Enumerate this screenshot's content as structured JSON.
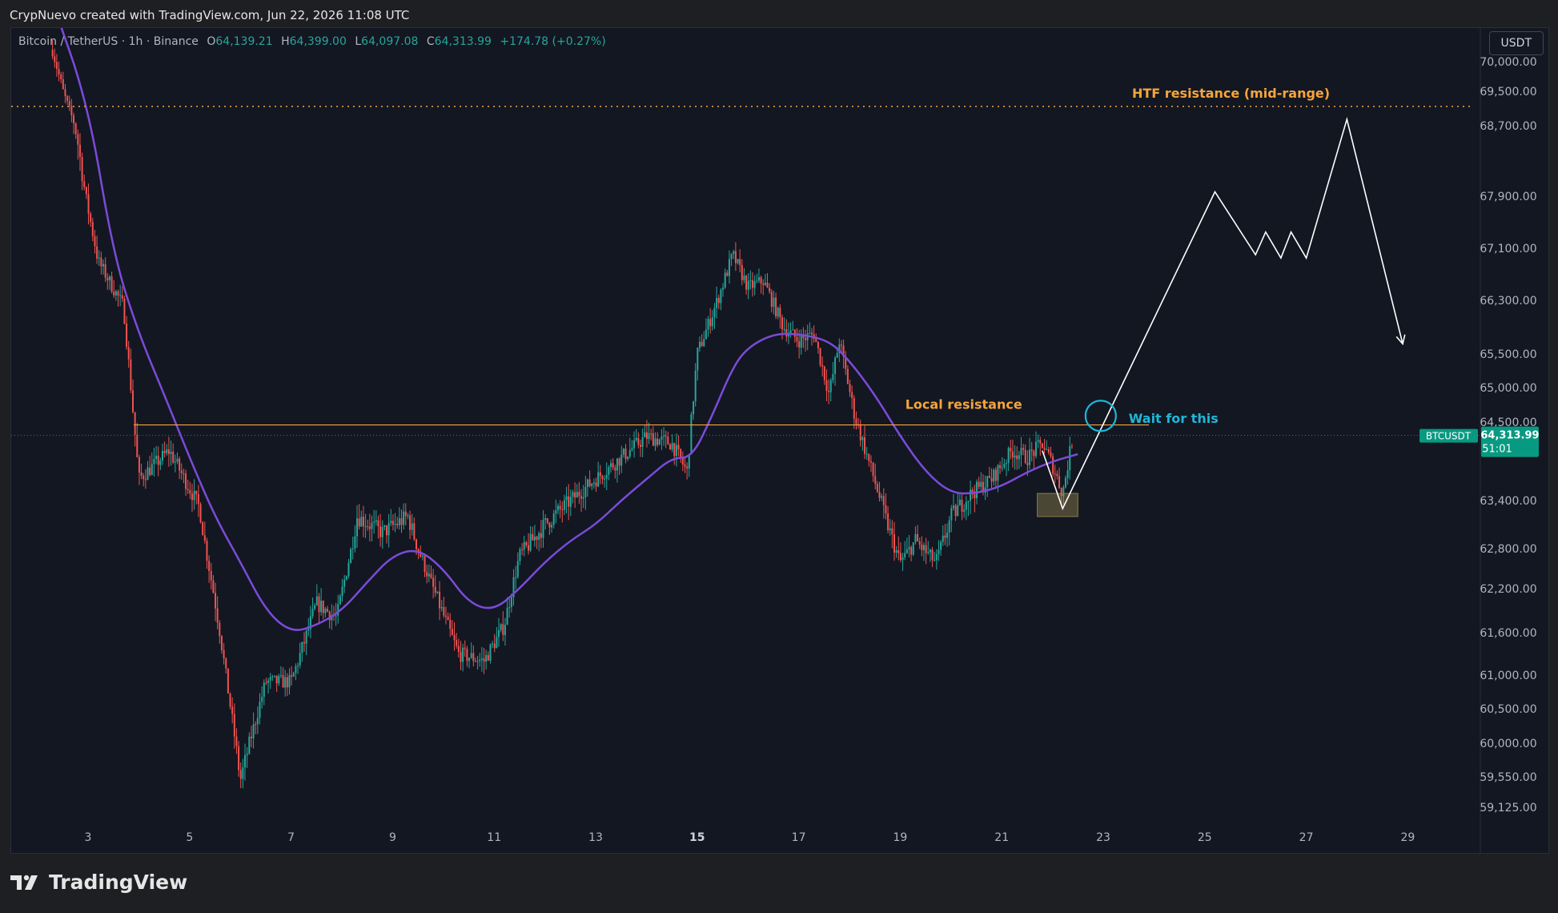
{
  "header": {
    "attribution": "CrypNuevo created with TradingView.com, Jun 22, 2026 11:08 UTC"
  },
  "symbol_bar": {
    "name": "Bitcoin / TetherUS · 1h · Binance",
    "o_label": "O",
    "o_value": "64,139.21",
    "h_label": "H",
    "h_value": "64,399.00",
    "l_label": "L",
    "l_value": "64,097.08",
    "c_label": "C",
    "c_value": "64,313.99",
    "change": "+174.78 (+0.27%)"
  },
  "currency_button": "USDT",
  "brand": "TradingView",
  "colors": {
    "up": "#26a69a",
    "down": "#ef5350",
    "ma": "#7b4bd8",
    "orange": "#f7a53b",
    "cyan": "#1eb6d8",
    "projection": "#ffffff",
    "price_tag": "#089981"
  },
  "chart_data": {
    "type": "candlestick",
    "timeframe": "1h",
    "symbol": "BTCUSDT",
    "x_ticks": [
      "3",
      "5",
      "7",
      "9",
      "11",
      "13",
      "15",
      "17",
      "19",
      "21",
      "23",
      "25",
      "27",
      "29"
    ],
    "x_ticks_bold": [
      "15"
    ],
    "x_tick_days": [
      3,
      5,
      7,
      9,
      11,
      13,
      15,
      17,
      19,
      21,
      23,
      25,
      27,
      29
    ],
    "y_ticks": [
      70000,
      69500,
      68700,
      67900,
      67100,
      66300,
      65500,
      65000,
      64500,
      63400,
      62800,
      62200,
      61600,
      61000,
      60500,
      60000,
      59550,
      59125
    ],
    "y_tick_labels": [
      "70,000.00",
      "69,500.00",
      "68,700.00",
      "67,900.00",
      "67,100.00",
      "66,300.00",
      "65,500.00",
      "65,000.00",
      "64,500.00",
      "63,400.00",
      "62,800.00",
      "62,200.00",
      "61,600.00",
      "61,000.00",
      "60,500.00",
      "60,000.00",
      "59,550.00",
      "59,125.00"
    ],
    "price_anchors": [
      {
        "day": 2.3,
        "price": 70200
      },
      {
        "day": 2.8,
        "price": 68500
      },
      {
        "day": 3.2,
        "price": 66900
      },
      {
        "day": 3.7,
        "price": 66200
      },
      {
        "day": 4.0,
        "price": 63700
      },
      {
        "day": 4.6,
        "price": 64100
      },
      {
        "day": 5.2,
        "price": 63300
      },
      {
        "day": 5.6,
        "price": 61600
      },
      {
        "day": 6.0,
        "price": 59500
      },
      {
        "day": 6.5,
        "price": 60900
      },
      {
        "day": 7.0,
        "price": 60900
      },
      {
        "day": 7.5,
        "price": 62000
      },
      {
        "day": 7.9,
        "price": 61800
      },
      {
        "day": 8.3,
        "price": 63200
      },
      {
        "day": 8.8,
        "price": 63000
      },
      {
        "day": 9.3,
        "price": 63200
      },
      {
        "day": 9.8,
        "price": 62200
      },
      {
        "day": 10.3,
        "price": 61300
      },
      {
        "day": 10.8,
        "price": 61200
      },
      {
        "day": 11.2,
        "price": 61700
      },
      {
        "day": 11.5,
        "price": 62700
      },
      {
        "day": 12.0,
        "price": 63100
      },
      {
        "day": 12.5,
        "price": 63400
      },
      {
        "day": 13.0,
        "price": 63700
      },
      {
        "day": 13.5,
        "price": 64000
      },
      {
        "day": 14.0,
        "price": 64300
      },
      {
        "day": 14.5,
        "price": 64200
      },
      {
        "day": 14.8,
        "price": 63800
      },
      {
        "day": 15.0,
        "price": 65500
      },
      {
        "day": 15.4,
        "price": 66300
      },
      {
        "day": 15.7,
        "price": 67000
      },
      {
        "day": 16.0,
        "price": 66500
      },
      {
        "day": 16.3,
        "price": 66600
      },
      {
        "day": 16.7,
        "price": 65900
      },
      {
        "day": 17.0,
        "price": 65700
      },
      {
        "day": 17.3,
        "price": 65800
      },
      {
        "day": 17.6,
        "price": 64900
      },
      {
        "day": 17.8,
        "price": 65700
      },
      {
        "day": 18.1,
        "price": 64600
      },
      {
        "day": 18.4,
        "price": 63900
      },
      {
        "day": 18.7,
        "price": 63200
      },
      {
        "day": 19.0,
        "price": 62600
      },
      {
        "day": 19.3,
        "price": 62900
      },
      {
        "day": 19.7,
        "price": 62600
      },
      {
        "day": 20.0,
        "price": 63200
      },
      {
        "day": 20.4,
        "price": 63500
      },
      {
        "day": 20.8,
        "price": 63700
      },
      {
        "day": 21.2,
        "price": 64100
      },
      {
        "day": 21.5,
        "price": 64000
      },
      {
        "day": 21.8,
        "price": 64200
      },
      {
        "day": 22.0,
        "price": 63900
      },
      {
        "day": 22.2,
        "price": 63500
      },
      {
        "day": 22.4,
        "price": 64300
      }
    ],
    "moving_average": [
      {
        "day": 2.3,
        "price": 71000
      },
      {
        "day": 3.0,
        "price": 69200
      },
      {
        "day": 3.5,
        "price": 67000
      },
      {
        "day": 4.0,
        "price": 65800
      },
      {
        "day": 4.5,
        "price": 64900
      },
      {
        "day": 5.0,
        "price": 64000
      },
      {
        "day": 5.5,
        "price": 63200
      },
      {
        "day": 6.0,
        "price": 62600
      },
      {
        "day": 6.5,
        "price": 61900
      },
      {
        "day": 7.0,
        "price": 61600
      },
      {
        "day": 7.5,
        "price": 61700
      },
      {
        "day": 8.0,
        "price": 61900
      },
      {
        "day": 8.5,
        "price": 62300
      },
      {
        "day": 9.0,
        "price": 62700
      },
      {
        "day": 9.5,
        "price": 62800
      },
      {
        "day": 10.0,
        "price": 62500
      },
      {
        "day": 10.5,
        "price": 62000
      },
      {
        "day": 11.0,
        "price": 61900
      },
      {
        "day": 11.5,
        "price": 62200
      },
      {
        "day": 12.0,
        "price": 62600
      },
      {
        "day": 12.5,
        "price": 62900
      },
      {
        "day": 13.0,
        "price": 63100
      },
      {
        "day": 13.5,
        "price": 63400
      },
      {
        "day": 14.0,
        "price": 63700
      },
      {
        "day": 14.5,
        "price": 64000
      },
      {
        "day": 14.9,
        "price": 64000
      },
      {
        "day": 15.3,
        "price": 64600
      },
      {
        "day": 15.7,
        "price": 65300
      },
      {
        "day": 16.0,
        "price": 65600
      },
      {
        "day": 16.5,
        "price": 65800
      },
      {
        "day": 17.0,
        "price": 65800
      },
      {
        "day": 17.6,
        "price": 65700
      },
      {
        "day": 18.0,
        "price": 65400
      },
      {
        "day": 18.5,
        "price": 64900
      },
      {
        "day": 19.0,
        "price": 64300
      },
      {
        "day": 19.5,
        "price": 63800
      },
      {
        "day": 20.0,
        "price": 63500
      },
      {
        "day": 20.5,
        "price": 63500
      },
      {
        "day": 21.0,
        "price": 63600
      },
      {
        "day": 21.5,
        "price": 63800
      },
      {
        "day": 22.0,
        "price": 63950
      },
      {
        "day": 22.5,
        "price": 64050
      }
    ],
    "levels": [
      {
        "label": "HTF resistance (mid-range)",
        "price": 69150,
        "style": "dotted",
        "color": "#f7a53b"
      },
      {
        "label": "Local resistance",
        "price": 64460,
        "style": "solid",
        "color": "#f7a53b",
        "from_day": 3.9,
        "to_day": 23.9
      }
    ],
    "current_price": {
      "symbol": "BTCUSDT",
      "price": "64,313.99",
      "value": 64313.99,
      "countdown": "51:01"
    },
    "projection": [
      {
        "day": 21.8,
        "price": 64100
      },
      {
        "day": 22.2,
        "price": 63300
      },
      {
        "day": 25.2,
        "price": 67950
      },
      {
        "day": 26.0,
        "price": 67000
      },
      {
        "day": 26.2,
        "price": 67350
      },
      {
        "day": 26.5,
        "price": 66950
      },
      {
        "day": 26.7,
        "price": 67350
      },
      {
        "day": 27.0,
        "price": 66950
      },
      {
        "day": 27.8,
        "price": 68850
      },
      {
        "day": 28.9,
        "price": 65650
      }
    ],
    "annotations": [
      {
        "text": "Local resistance",
        "day": 19.1,
        "price": 64600
      },
      {
        "text": "Wait for this",
        "day": 23.5,
        "price": 64560
      }
    ],
    "marker_circle": {
      "day": 22.95,
      "price": 64590
    },
    "demand_box": {
      "day_from": 21.7,
      "day_to": 22.5,
      "price_low": 63200,
      "price_high": 63500
    }
  }
}
